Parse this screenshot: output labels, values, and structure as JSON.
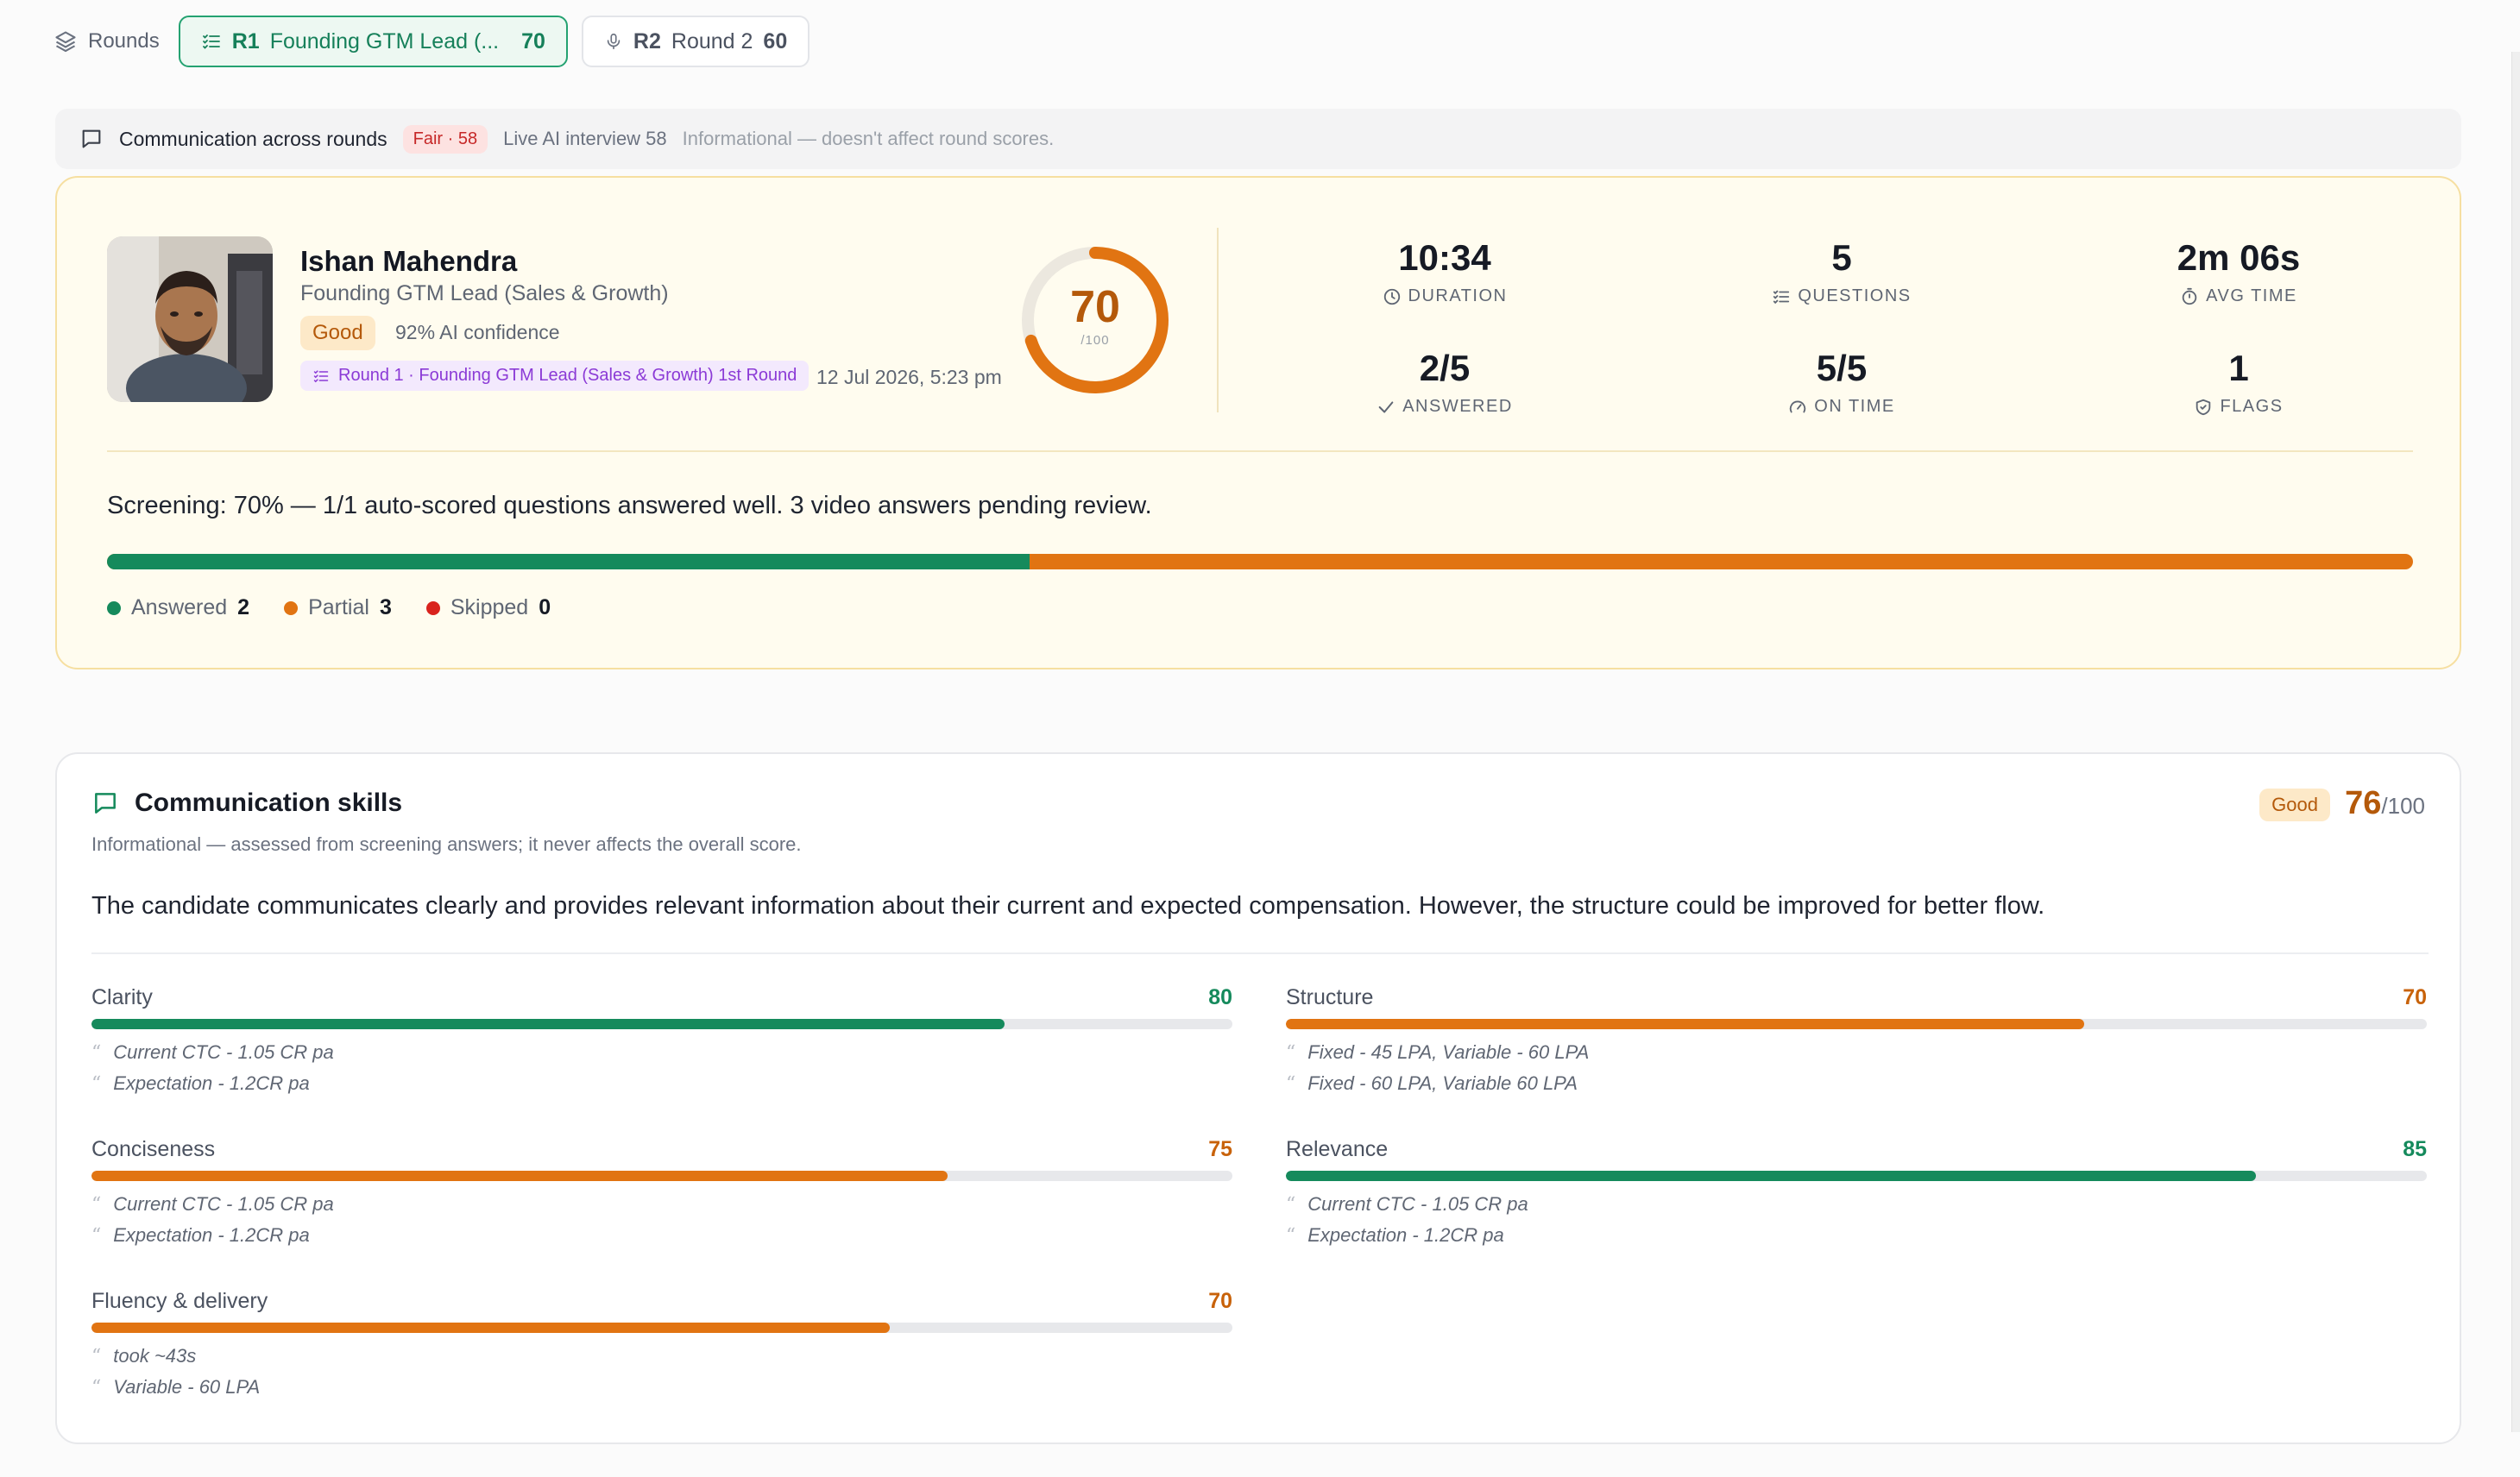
{
  "rounds_bar": {
    "label": "Rounds",
    "tabs": [
      {
        "code": "R1",
        "name": "Founding GTM Lead (...",
        "score": "70"
      },
      {
        "code": "R2",
        "name": "Round 2",
        "score": "60"
      }
    ]
  },
  "comm_across": {
    "title": "Communication across rounds",
    "fair_badge": "Fair · 58",
    "live_interview": "Live AI interview 58",
    "note": "Informational — doesn't affect round scores."
  },
  "candidate": {
    "name": "Ishan Mahendra",
    "role": "Founding GTM Lead (Sales & Growth)",
    "rating": "Good",
    "ai_confidence": "92% AI confidence",
    "round_chip": "Round 1 · Founding GTM Lead (Sales & Growth) 1st Round",
    "date": "12 Jul 2026, 5:23 pm",
    "score": "70",
    "score_max": "/100",
    "score_fraction": 0.7
  },
  "stats": {
    "duration": {
      "value": "10:34",
      "label": "DURATION"
    },
    "questions": {
      "value": "5",
      "label": "QUESTIONS"
    },
    "avg_time": {
      "value": "2m 06s",
      "label": "AVG TIME"
    },
    "answered": {
      "value": "2/5",
      "label": "ANSWERED"
    },
    "on_time": {
      "value": "5/5",
      "label": "ON TIME"
    },
    "flags": {
      "value": "1",
      "label": "FLAGS"
    }
  },
  "screening": {
    "text": "Screening: 70% — 1/1 auto-scored questions answered well. 3 video answers pending review.",
    "progress_answered_fraction": 0.4,
    "legend": [
      {
        "label": "Answered",
        "count": "2",
        "color": "#158a5c"
      },
      {
        "label": "Partial",
        "count": "3",
        "color": "#e17412"
      },
      {
        "label": "Skipped",
        "count": "0",
        "color": "#d9231d"
      }
    ]
  },
  "skills": {
    "title": "Communication skills",
    "subtitle": "Informational — assessed from screening answers; it never affects the overall score.",
    "rating": "Good",
    "score": "76",
    "score_max": "/100",
    "description": "The candidate communicates clearly and provides relevant information about their current and expected compensation. However, the structure could be improved for better flow.",
    "metrics": [
      {
        "name": "Clarity",
        "value": "80",
        "fraction": 0.8,
        "color": "#158a5c",
        "quotes": [
          "Current CTC - 1.05 CR pa",
          "Expectation - 1.2CR pa"
        ]
      },
      {
        "name": "Structure",
        "value": "70",
        "fraction": 0.7,
        "color": "#e17412",
        "quotes": [
          "Fixed - 45 LPA, Variable - 60 LPA",
          "Fixed - 60 LPA, Variable 60 LPA"
        ]
      },
      {
        "name": "Conciseness",
        "value": "75",
        "fraction": 0.75,
        "color": "#e17412",
        "quotes": [
          "Current CTC - 1.05 CR pa",
          "Expectation - 1.2CR pa"
        ]
      },
      {
        "name": "Relevance",
        "value": "85",
        "fraction": 0.85,
        "color": "#158a5c",
        "quotes": [
          "Current CTC - 1.05 CR pa",
          "Expectation - 1.2CR pa"
        ]
      },
      {
        "name": "Fluency & delivery",
        "value": "70",
        "fraction": 0.7,
        "color": "#e17412",
        "quotes": [
          "took ~43s",
          "Variable - 60 LPA"
        ]
      }
    ]
  },
  "icons": {
    "rounds": "layers-icon",
    "checklist": "list-check-icon",
    "mic": "microphone-icon",
    "chat": "chat-bubble-icon",
    "clock": "clock-icon",
    "timer": "stopwatch-icon",
    "check": "check-icon",
    "gauge": "gauge-icon",
    "shield": "shield-check-icon",
    "quote": "quote-icon"
  }
}
